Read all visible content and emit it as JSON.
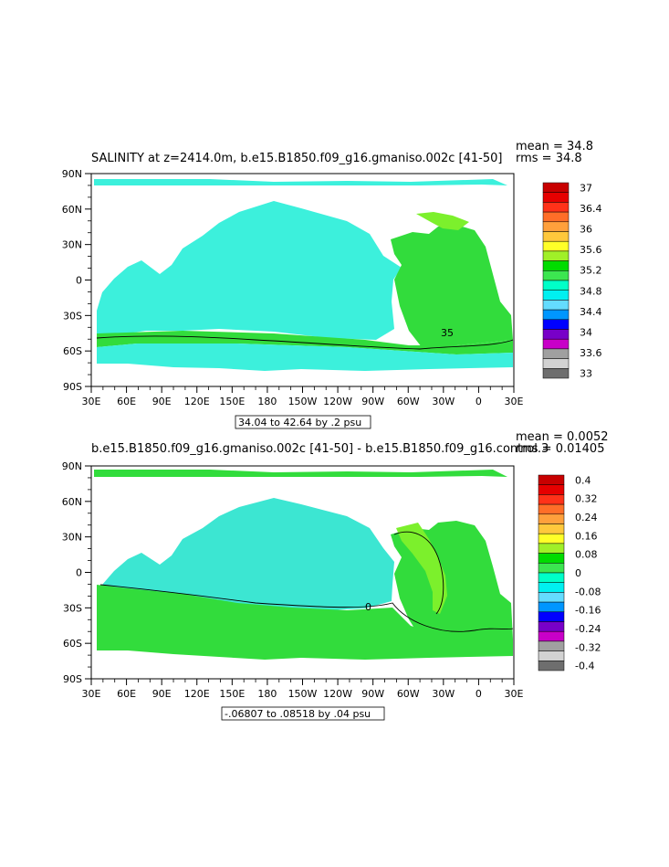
{
  "panels": [
    {
      "title": "SALINITY at z=2414.0m, b.e15.B1850.f09_g16.gmaniso.002c [41-50]",
      "mean_text": "mean = 34.8",
      "rms_text": "rms = 34.8",
      "info_text": "34.04 to 42.64 by .2 psu",
      "contour_label": "35",
      "colorbar": {
        "labels": [
          "37",
          "36.4",
          "36",
          "35.6",
          "35.2",
          "34.8",
          "34.4",
          "34",
          "33.6",
          "33"
        ],
        "colors": [
          "#c80000",
          "#e60000",
          "#ff3219",
          "#ff6e28",
          "#ffa03c",
          "#ffc83c",
          "#ffff28",
          "#a0f028",
          "#00dc00",
          "#3ce650",
          "#00ffc8",
          "#00f0f0",
          "#64dcff",
          "#0096ff",
          "#0000ff",
          "#7800c8",
          "#c800c8",
          "#a0a0a0",
          "#d2d2d2",
          "#6e6e6e"
        ]
      },
      "fields": {
        "pacific_indian": "#3cf0dc",
        "atlantic": "#32dc3c",
        "southern_band": "#32dc3c"
      }
    },
    {
      "title": "b.e15.B1850.f09_g16.gmaniso.002c [41-50] - b.e15.B1850.f09_g16.control.3",
      "mean_text": "mean = 0.0052",
      "rms_text": "rms = 0.01405",
      "info_text": "-.06807 to .08518 by .04 psu",
      "contour_label": "0",
      "colorbar": {
        "labels": [
          "0.4",
          "0.32",
          "0.24",
          "0.16",
          "0.08",
          "0",
          "-0.08",
          "-0.16",
          "-0.24",
          "-0.32",
          "-0.4"
        ],
        "colors": [
          "#c80000",
          "#e60000",
          "#ff3219",
          "#ff6e28",
          "#ffa03c",
          "#ffc83c",
          "#ffff28",
          "#a0f028",
          "#00dc00",
          "#3ce650",
          "#00ffc8",
          "#00f0f0",
          "#64dcff",
          "#0096ff",
          "#0000ff",
          "#7800c8",
          "#c800c8",
          "#a0a0a0",
          "#d2d2d2",
          "#6e6e6e"
        ]
      },
      "fields": {
        "pacific_indian": "#3ce6d2",
        "atlantic": "#32dc3c",
        "southern_band": "#32dc3c"
      }
    }
  ],
  "axes": {
    "lon_labels": [
      "30E",
      "60E",
      "90E",
      "120E",
      "150E",
      "180",
      "150W",
      "120W",
      "90W",
      "60W",
      "30W",
      "0",
      "30E"
    ],
    "lat_labels": [
      "90N",
      "60N",
      "30N",
      "0",
      "30S",
      "60S",
      "90S"
    ]
  }
}
